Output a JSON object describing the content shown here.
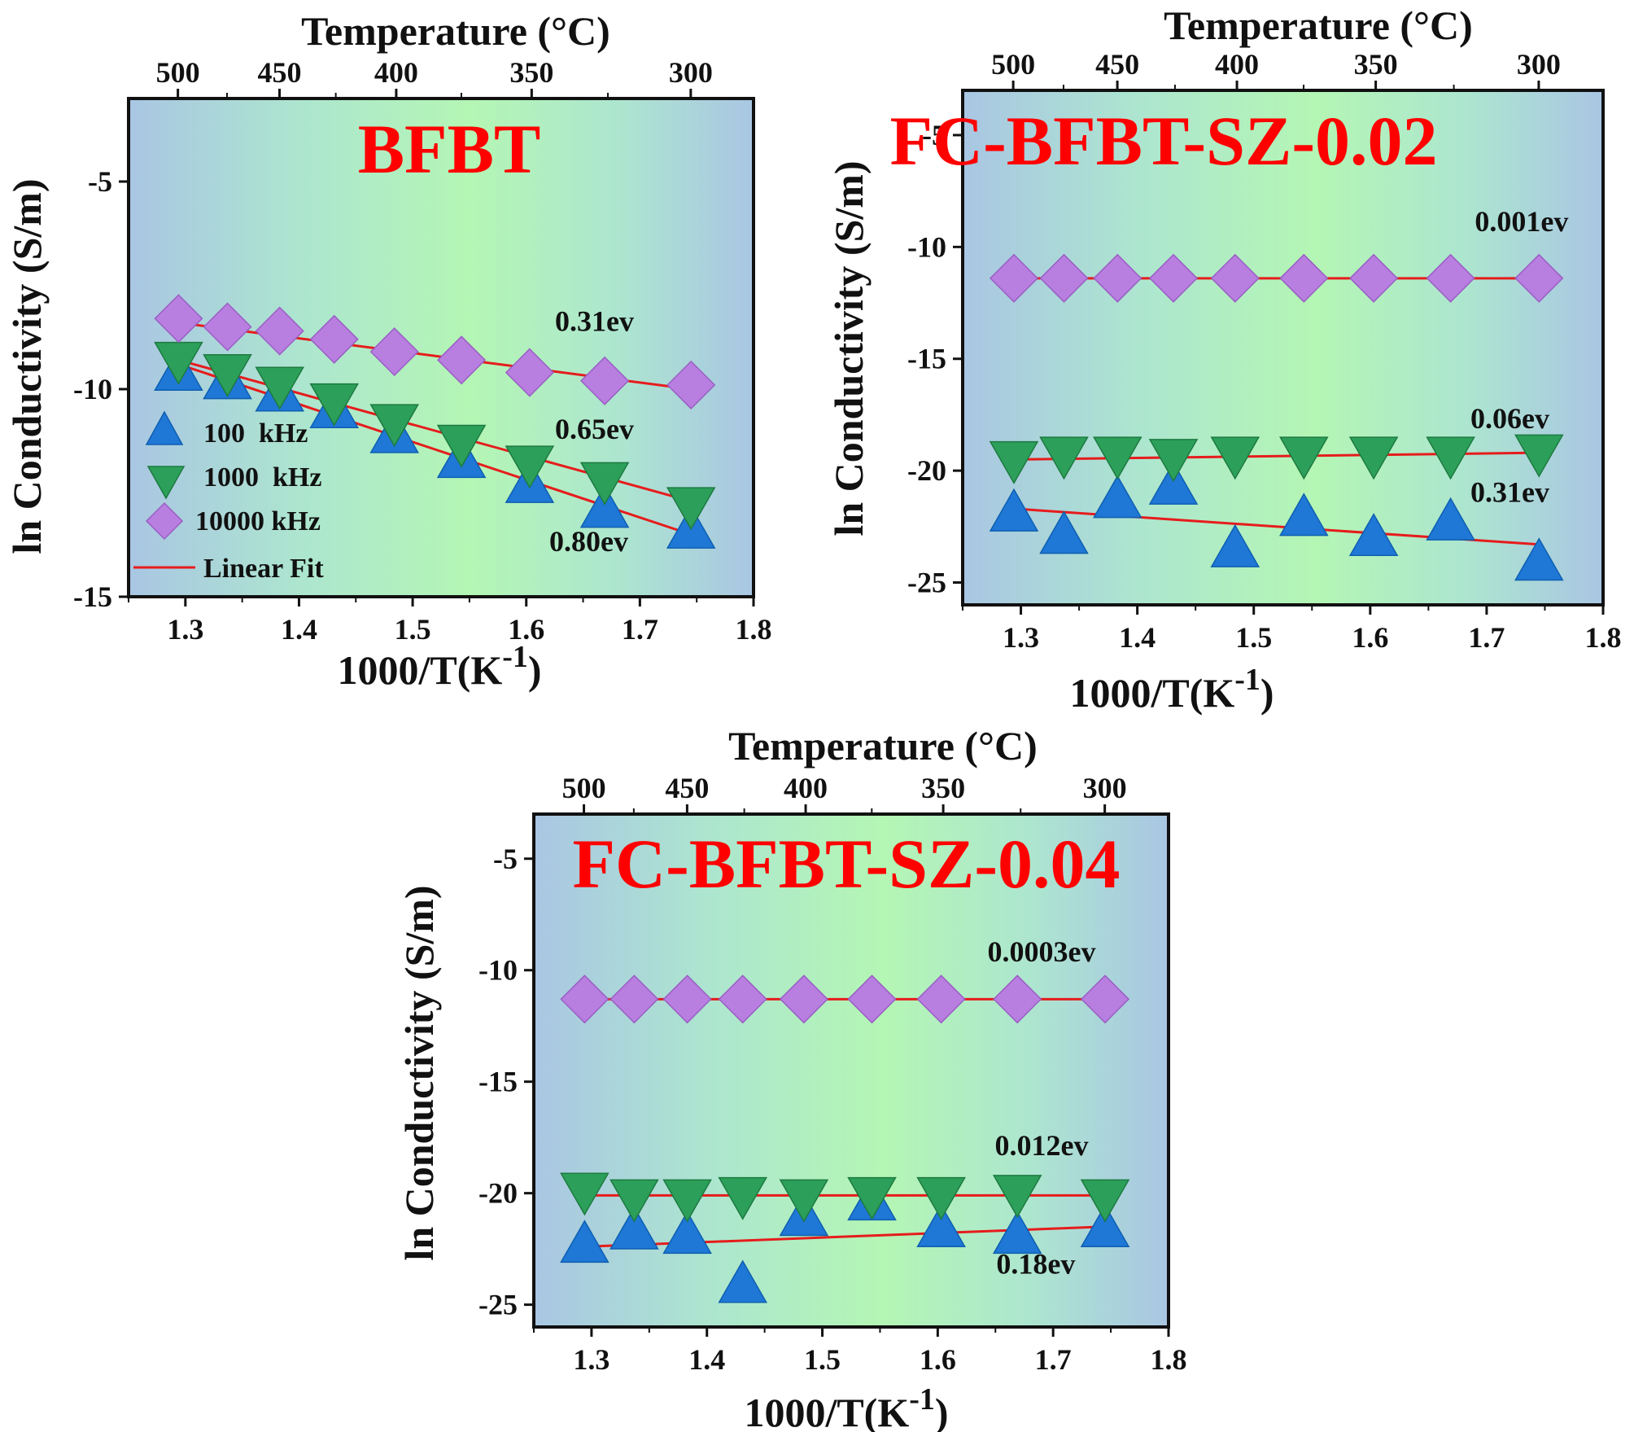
{
  "figure": {
    "panels": [
      {
        "title": "BFBT",
        "x_label": "1000/T(K",
        "x_label_sup": "-1",
        "x_label_close": ")",
        "y_label": "ln Conductivity (S/m)",
        "top_label": "Temperature (°C)",
        "legend": [
          {
            "label": "100  kHz",
            "marker": "triangle-up",
            "color": "#1f77d6"
          },
          {
            "label": "1000  kHz",
            "marker": "triangle-down",
            "color": "#2ca05a"
          },
          {
            "label": "10000 kHz",
            "marker": "diamond",
            "color": "#b87ee0"
          },
          {
            "label": "Linear Fit",
            "marker": "line",
            "color": "#e61c1c"
          }
        ]
      },
      {
        "title": "FC-BFBT-SZ-0.02",
        "x_label": "1000/T(K",
        "x_label_sup": "-1",
        "x_label_close": ")",
        "y_label": "ln Conductivity (S/m)",
        "top_label": "Temperature (°C)"
      },
      {
        "title": "FC-BFBT-SZ-0.04",
        "x_label": "1000/T(K",
        "x_label_sup": "-1",
        "x_label_close": ")",
        "y_label": "ln Conductivity (S/m)",
        "top_label": "Temperature (°C)"
      }
    ]
  },
  "chart_data": [
    {
      "type": "scatter",
      "title": "BFBT",
      "xlabel": "1000/T(K-1)",
      "ylabel": "ln Conductivity (S/m)",
      "x2label": "Temperature (°C)",
      "xlim": [
        1.25,
        1.8
      ],
      "ylim": [
        -15,
        -3
      ],
      "xticks": [
        1.3,
        1.4,
        1.5,
        1.6,
        1.7,
        1.8
      ],
      "yticks": [
        -15,
        -10,
        -5
      ],
      "x2ticks": [
        500,
        450,
        400,
        350,
        300
      ],
      "grid": false,
      "legend_position": "bottom-left",
      "x": [
        1.294,
        1.337,
        1.383,
        1.431,
        1.484,
        1.543,
        1.603,
        1.669,
        1.745
      ],
      "series": [
        {
          "name": "100  kHz",
          "marker": "triangle-up",
          "color": "#1f77d6",
          "values": [
            -9.6,
            -9.8,
            -10.1,
            -10.5,
            -11.1,
            -11.7,
            -12.3,
            -12.9,
            -13.4
          ]
        },
        {
          "name": "1000  kHz",
          "marker": "triangle-down",
          "color": "#2ca05a",
          "values": [
            -9.3,
            -9.6,
            -9.9,
            -10.3,
            -10.8,
            -11.3,
            -11.8,
            -12.2,
            -12.8
          ]
        },
        {
          "name": "10000 kHz",
          "marker": "diamond",
          "color": "#b87ee0",
          "values": [
            -8.3,
            -8.5,
            -8.6,
            -8.8,
            -9.1,
            -9.3,
            -9.6,
            -9.8,
            -9.9
          ]
        }
      ],
      "fits": [
        {
          "name": "Linear Fit",
          "x": [
            1.294,
            1.745
          ],
          "y": [
            -8.4,
            -10.0
          ],
          "label": "0.31ev",
          "label_x": 1.66,
          "label_y": -8.6
        },
        {
          "name": "Linear Fit",
          "x": [
            1.294,
            1.745
          ],
          "y": [
            -9.3,
            -12.7
          ],
          "label": "0.65ev",
          "label_x": 1.66,
          "label_y": -11.2
        },
        {
          "name": "Linear Fit",
          "x": [
            1.294,
            1.745
          ],
          "y": [
            -9.4,
            -13.5
          ],
          "label": "0.80ev",
          "label_x": 1.655,
          "label_y": -13.9
        }
      ]
    },
    {
      "type": "scatter",
      "title": "FC-BFBT-SZ-0.02",
      "xlabel": "1000/T(K-1)",
      "ylabel": "ln Conductivity (S/m)",
      "x2label": "Temperature (°C)",
      "xlim": [
        1.25,
        1.8
      ],
      "ylim": [
        -26,
        -3
      ],
      "xticks": [
        1.3,
        1.4,
        1.5,
        1.6,
        1.7,
        1.8
      ],
      "yticks": [
        -25,
        -20,
        -15,
        -10,
        -5
      ],
      "x2ticks": [
        500,
        450,
        400,
        350,
        300
      ],
      "grid": false,
      "x": [
        1.294,
        1.337,
        1.383,
        1.431,
        1.484,
        1.543,
        1.603,
        1.669,
        1.745
      ],
      "series": [
        {
          "name": "100  kHz",
          "marker": "triangle-up",
          "color": "#1f77d6",
          "values": [
            -21.9,
            -22.9,
            -21.3,
            -20.7,
            -23.5,
            -22.1,
            -23.0,
            -22.3,
            -24.1
          ]
        },
        {
          "name": "1000  kHz",
          "marker": "triangle-down",
          "color": "#2ca05a",
          "values": [
            -19.5,
            -19.3,
            -19.3,
            -19.4,
            -19.3,
            -19.3,
            -19.3,
            -19.3,
            -19.2
          ]
        },
        {
          "name": "10000 kHz",
          "marker": "diamond",
          "color": "#b87ee0",
          "values": [
            -11.4,
            -11.4,
            -11.4,
            -11.4,
            -11.4,
            -11.4,
            -11.4,
            -11.4,
            -11.4
          ]
        }
      ],
      "fits": [
        {
          "name": "Linear Fit",
          "x": [
            1.294,
            1.745
          ],
          "y": [
            -11.4,
            -11.4
          ],
          "label": "0.001ev",
          "label_x": 1.73,
          "label_y": -9.3
        },
        {
          "name": "Linear Fit",
          "x": [
            1.294,
            1.745
          ],
          "y": [
            -19.5,
            -19.2
          ],
          "label": "0.06ev",
          "label_x": 1.72,
          "label_y": -18.1
        },
        {
          "name": "Linear Fit",
          "x": [
            1.294,
            1.745
          ],
          "y": [
            -21.7,
            -23.3
          ],
          "label": "0.31ev",
          "label_x": 1.72,
          "label_y": -21.4
        }
      ]
    },
    {
      "type": "scatter",
      "title": "FC-BFBT-SZ-0.04",
      "xlabel": "1000/T(K-1)",
      "ylabel": "ln Conductivity (S/m)",
      "x2label": "Temperature (°C)",
      "xlim": [
        1.25,
        1.8
      ],
      "ylim": [
        -26,
        -3
      ],
      "xticks": [
        1.3,
        1.4,
        1.5,
        1.6,
        1.7,
        1.8
      ],
      "yticks": [
        -25,
        -20,
        -15,
        -10,
        -5
      ],
      "x2ticks": [
        500,
        450,
        400,
        350,
        300
      ],
      "grid": false,
      "x": [
        1.294,
        1.337,
        1.383,
        1.431,
        1.484,
        1.543,
        1.603,
        1.669,
        1.745
      ],
      "series": [
        {
          "name": "100  kHz",
          "marker": "triangle-up",
          "color": "#1f77d6",
          "values": [
            -22.3,
            -21.7,
            -21.9,
            -24.1,
            -21.1,
            -20.4,
            -21.6,
            -21.9,
            -21.6
          ]
        },
        {
          "name": "1000  kHz",
          "marker": "triangle-down",
          "color": "#2ca05a",
          "values": [
            -19.9,
            -20.2,
            -20.2,
            -20.1,
            -20.2,
            -20.1,
            -20.1,
            -20.0,
            -20.2
          ]
        },
        {
          "name": "10000 kHz",
          "marker": "diamond",
          "color": "#b87ee0",
          "values": [
            -11.3,
            -11.3,
            -11.3,
            -11.3,
            -11.3,
            -11.3,
            -11.3,
            -11.3,
            -11.3
          ]
        }
      ],
      "fits": [
        {
          "name": "Linear Fit",
          "x": [
            1.294,
            1.745
          ],
          "y": [
            -11.3,
            -11.3
          ],
          "label": "0.0003ev",
          "label_x": 1.69,
          "label_y": -9.6
        },
        {
          "name": "Linear Fit",
          "x": [
            1.294,
            1.745
          ],
          "y": [
            -20.1,
            -20.1
          ],
          "label": "0.012ev",
          "label_x": 1.69,
          "label_y": -18.3
        },
        {
          "name": "Linear Fit",
          "x": [
            1.294,
            1.745
          ],
          "y": [
            -22.4,
            -21.5
          ],
          "label": "0.18ev",
          "label_x": 1.685,
          "label_y": -23.6
        }
      ]
    }
  ]
}
